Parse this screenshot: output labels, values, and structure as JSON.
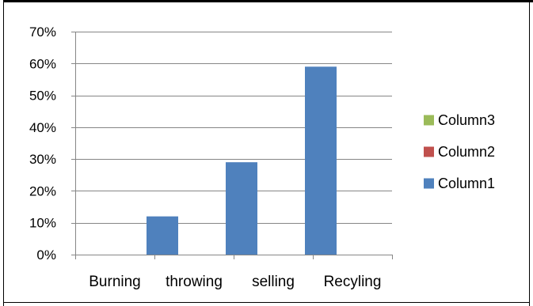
{
  "chart_data": {
    "type": "bar",
    "title": "",
    "xlabel": "",
    "ylabel": "",
    "categories": [
      "Burning",
      "throwing",
      "selling",
      "Recyling"
    ],
    "ylim": [
      0,
      0.7
    ],
    "y_ticks": [
      "0%",
      "10%",
      "20%",
      "30%",
      "40%",
      "50%",
      "60%",
      "70%"
    ],
    "y_tick_values": [
      0,
      0.1,
      0.2,
      0.3,
      0.4,
      0.5,
      0.6,
      0.7
    ],
    "grid": true,
    "legend_position": "right",
    "series": [
      {
        "name": "Column1",
        "values": [
          0,
          0.12,
          0.29,
          0.59
        ],
        "color": "#4F81BD"
      },
      {
        "name": "Column2",
        "values": [
          0,
          0,
          0,
          0
        ],
        "color": "#C0504D"
      },
      {
        "name": "Column3",
        "values": [
          0,
          0,
          0,
          0
        ],
        "color": "#9BBB59"
      }
    ],
    "legend_order": [
      "Column3",
      "Column2",
      "Column1"
    ]
  }
}
